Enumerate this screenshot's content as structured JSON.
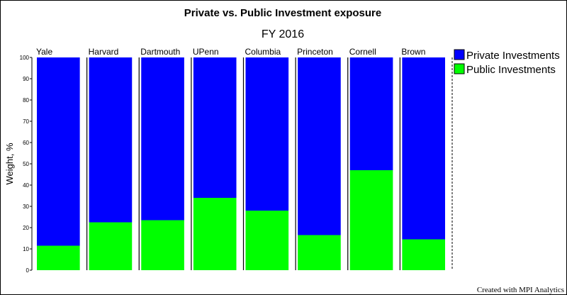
{
  "chart_data": {
    "type": "bar",
    "stacked": true,
    "title": "Private vs. Public Investment exposure",
    "subtitle": "FY 2016",
    "ylabel": "Weight, %",
    "ylim": [
      0,
      100
    ],
    "yticks": [
      0,
      10,
      20,
      30,
      40,
      50,
      60,
      70,
      80,
      90,
      100
    ],
    "categories": [
      "Yale",
      "Harvard",
      "Dartmouth",
      "UPenn",
      "Columbia",
      "Princeton",
      "Cornell",
      "Brown"
    ],
    "series": [
      {
        "name": "Public Investments",
        "color": "#00ff00",
        "values": [
          11.5,
          22.5,
          23.5,
          34,
          28,
          16.5,
          47,
          14.5
        ]
      },
      {
        "name": "Private Investments",
        "color": "#0000ff",
        "values": [
          88.5,
          77.5,
          76.5,
          66,
          72,
          83.5,
          53,
          85.5
        ]
      }
    ],
    "legend": {
      "position": "right",
      "order": [
        "Private Investments",
        "Public Investments"
      ]
    },
    "grid": false
  },
  "footer": "Created with MPI Analytics"
}
